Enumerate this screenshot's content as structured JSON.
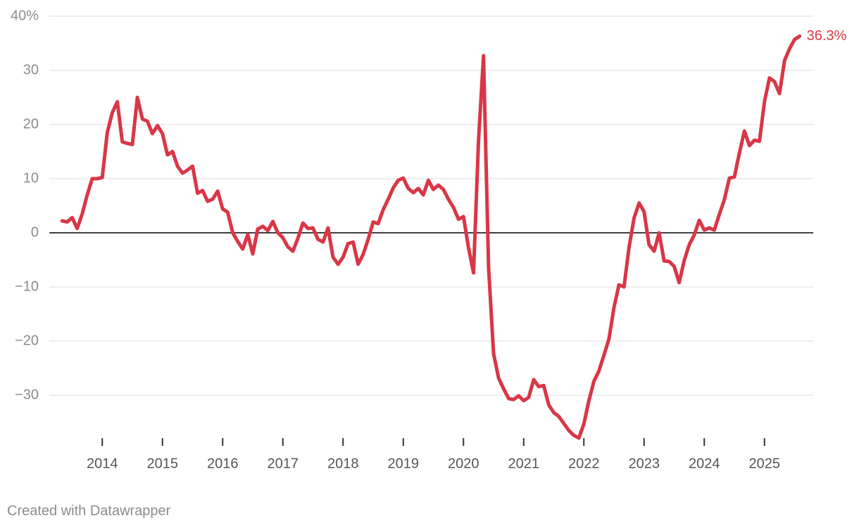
{
  "chart_data": {
    "type": "line",
    "x": [
      2013.333,
      2013.417,
      2013.5,
      2013.583,
      2013.667,
      2013.75,
      2013.833,
      2013.917,
      2014,
      2014.083,
      2014.167,
      2014.25,
      2014.333,
      2014.417,
      2014.5,
      2014.583,
      2014.667,
      2014.75,
      2014.833,
      2014.917,
      2015,
      2015.083,
      2015.167,
      2015.25,
      2015.333,
      2015.417,
      2015.5,
      2015.583,
      2015.667,
      2015.75,
      2015.833,
      2015.917,
      2016,
      2016.083,
      2016.167,
      2016.25,
      2016.333,
      2016.417,
      2016.5,
      2016.583,
      2016.667,
      2016.75,
      2016.833,
      2016.917,
      2017,
      2017.083,
      2017.167,
      2017.25,
      2017.333,
      2017.417,
      2017.5,
      2017.583,
      2017.667,
      2017.75,
      2017.833,
      2017.917,
      2018,
      2018.083,
      2018.167,
      2018.25,
      2018.333,
      2018.417,
      2018.5,
      2018.583,
      2018.667,
      2018.75,
      2018.833,
      2018.917,
      2019,
      2019.083,
      2019.167,
      2019.25,
      2019.333,
      2019.417,
      2019.5,
      2019.583,
      2019.667,
      2019.75,
      2019.833,
      2019.917,
      2020,
      2020.083,
      2020.167,
      2020.25,
      2020.333,
      2020.417,
      2020.5,
      2020.583,
      2020.667,
      2020.75,
      2020.833,
      2020.917,
      2021,
      2021.083,
      2021.167,
      2021.25,
      2021.333,
      2021.417,
      2021.5,
      2021.583,
      2021.667,
      2021.75,
      2021.833,
      2021.917,
      2022,
      2022.083,
      2022.167,
      2022.25,
      2022.333,
      2022.417,
      2022.5,
      2022.583,
      2022.667,
      2022.75,
      2022.833,
      2022.917,
      2023,
      2023.083,
      2023.167,
      2023.25,
      2023.333,
      2023.417,
      2023.5,
      2023.583,
      2023.667,
      2023.75,
      2023.833,
      2023.917,
      2024,
      2024.083,
      2024.167,
      2024.25,
      2024.333,
      2024.417,
      2024.5,
      2024.583,
      2024.667,
      2024.75,
      2024.833,
      2024.917,
      2025,
      2025.083,
      2025.167,
      2025.25,
      2025.333,
      2025.417,
      2025.5,
      2025.583
    ],
    "series": [
      {
        "color": "#d93646",
        "values": [
          2.2,
          2.0,
          2.8,
          0.8,
          3.5,
          7,
          10,
          10,
          10.2,
          18.5,
          22.2,
          24.2,
          16.8,
          16.5,
          16.3,
          25,
          21,
          20.6,
          18.3,
          19.8,
          18.3,
          14.4,
          15,
          12.3,
          11,
          11.6,
          12.3,
          7.3,
          7.8,
          5.8,
          6.2,
          7.7,
          4.4,
          3.8,
          0,
          -1.6,
          -3,
          -0.3,
          -3.9,
          0.7,
          1.2,
          0.4,
          2.1,
          0,
          -0.9,
          -2.6,
          -3.4,
          -1,
          1.8,
          0.8,
          0.9,
          -1.2,
          -1.7,
          0.9,
          -4.5,
          -5.8,
          -4.5,
          -2,
          -1.7,
          -5.8,
          -4,
          -1.2,
          2,
          1.7,
          4.3,
          6.2,
          8.3,
          9.7,
          10.1,
          8.2,
          7.4,
          8.2,
          7,
          9.7,
          8,
          8.8,
          8,
          6.2,
          4.7,
          2.5,
          3,
          -2.7,
          -7.4,
          17,
          32.7,
          -6.4,
          -22.3,
          -26.8,
          -28.8,
          -30.6,
          -30.8,
          -30.1,
          -31,
          -30.4,
          -27.1,
          -28.4,
          -28.2,
          -31.8,
          -33.2,
          -33.9,
          -35.2,
          -36.5,
          -37.4,
          -37.9,
          -35.3,
          -31,
          -27.4,
          -25.5,
          -22.6,
          -19.6,
          -13.8,
          -9.6,
          -10,
          -2.7,
          2.7,
          5.5,
          3.9,
          -2.2,
          -3.4,
          0,
          -5.2,
          -5.3,
          -6.2,
          -9.2,
          -5.1,
          -2.2,
          -0.4,
          2.3,
          0.5,
          0.9,
          0.5,
          3.4,
          6.1,
          10.1,
          10.3,
          14.7,
          18.8,
          16.1,
          17.1,
          16.9,
          24.2,
          28.6,
          27.9,
          25.7,
          31.8,
          34,
          35.7,
          36.3
        ],
        "value_labels": [
          null,
          null,
          null,
          null,
          null,
          null,
          null,
          null,
          null,
          null,
          null,
          null,
          null,
          null,
          null,
          null,
          null,
          null,
          null,
          null,
          null,
          null,
          null,
          null,
          null,
          null,
          null,
          null,
          null,
          null,
          null,
          null,
          null,
          null,
          null,
          null,
          null,
          null,
          null,
          null,
          null,
          null,
          null,
          null,
          null,
          null,
          null,
          null,
          null,
          null,
          null,
          null,
          null,
          null,
          null,
          null,
          null,
          null,
          null,
          null,
          null,
          null,
          null,
          null,
          null,
          null,
          null,
          null,
          null,
          null,
          null,
          null,
          null,
          null,
          null,
          null,
          null,
          null,
          null,
          null,
          null,
          null,
          null,
          null,
          null,
          null,
          null,
          null,
          null,
          null,
          null,
          null,
          null,
          null,
          null,
          null,
          null,
          null,
          null,
          null,
          null,
          null,
          null,
          null,
          null,
          null,
          null,
          null,
          null,
          null,
          null,
          null,
          null,
          null,
          null,
          null,
          null,
          null,
          null,
          null,
          null,
          null,
          null,
          null,
          null,
          null,
          null,
          null,
          null,
          null,
          null,
          null,
          null,
          null,
          null,
          null,
          null,
          null,
          null,
          null,
          null,
          null,
          null,
          null,
          null,
          null,
          null,
          "36.3%"
        ]
      }
    ],
    "xlim": [
      2013.12,
      2025.81
    ],
    "xticks": [
      2014,
      2015,
      2016,
      2017,
      2018,
      2019,
      2020,
      2021,
      2022,
      2023,
      2024,
      2025
    ],
    "ylim": [
      -40,
      40
    ],
    "yticks": [
      {
        "value": 40,
        "label": "40%"
      },
      30,
      20,
      10,
      0,
      {
        "value": -10,
        "label": "−10"
      },
      {
        "value": -20,
        "label": "−20"
      },
      {
        "value": -30,
        "label": "−30"
      }
    ],
    "grid": true,
    "footer": "Created with Datawrapper"
  }
}
